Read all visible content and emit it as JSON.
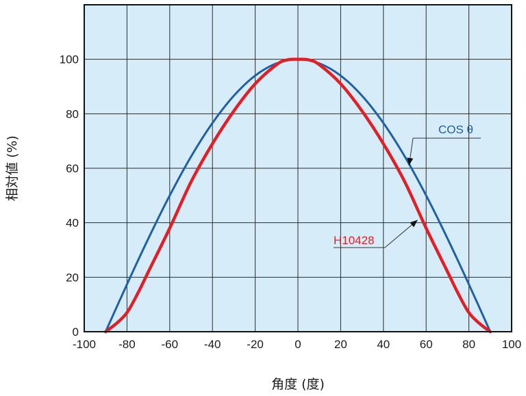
{
  "chart_data": {
    "type": "line",
    "xlabel": "角度 (度)",
    "ylabel": "相対値 (%)",
    "xlim": [
      -100,
      100
    ],
    "ylim": [
      0,
      120
    ],
    "x_ticks": [
      -100,
      -80,
      -60,
      -40,
      -20,
      0,
      20,
      40,
      60,
      80,
      100
    ],
    "y_ticks": [
      0,
      20,
      40,
      60,
      80,
      100
    ],
    "grid": true,
    "background_color": "#d6ecf8",
    "series": [
      {
        "name": "COS θ",
        "color": "#1f5fa6",
        "x": [
          -90,
          -80,
          -70,
          -60,
          -50,
          -40,
          -30,
          -20,
          -10,
          0,
          10,
          20,
          30,
          40,
          50,
          60,
          70,
          80,
          90
        ],
        "y": [
          0,
          17.4,
          34.2,
          50,
          64.3,
          76.6,
          86.6,
          94,
          98.5,
          100,
          98.5,
          94,
          86.6,
          76.6,
          64.3,
          50,
          34.2,
          17.4,
          0
        ]
      },
      {
        "name": "H10428",
        "color": "#e01f26",
        "x": [
          -90,
          -85,
          -80,
          -75,
          -70,
          -60,
          -50,
          -40,
          -30,
          -20,
          -10,
          -5,
          0,
          5,
          10,
          20,
          30,
          40,
          50,
          60,
          70,
          75,
          80,
          85,
          90
        ],
        "y": [
          0,
          3,
          7,
          14,
          22,
          38,
          55,
          69,
          81,
          91,
          98,
          99.8,
          100,
          99.8,
          98,
          91,
          81,
          69,
          55,
          38,
          22,
          14,
          7,
          3,
          0
        ]
      }
    ],
    "annotations": [
      {
        "text": "COS θ",
        "series": 0,
        "color": "#1f5fa6",
        "target": [
          52,
          61
        ]
      },
      {
        "text": "H10428",
        "series": 1,
        "color": "#e01f26",
        "target": [
          56,
          41
        ]
      }
    ]
  }
}
